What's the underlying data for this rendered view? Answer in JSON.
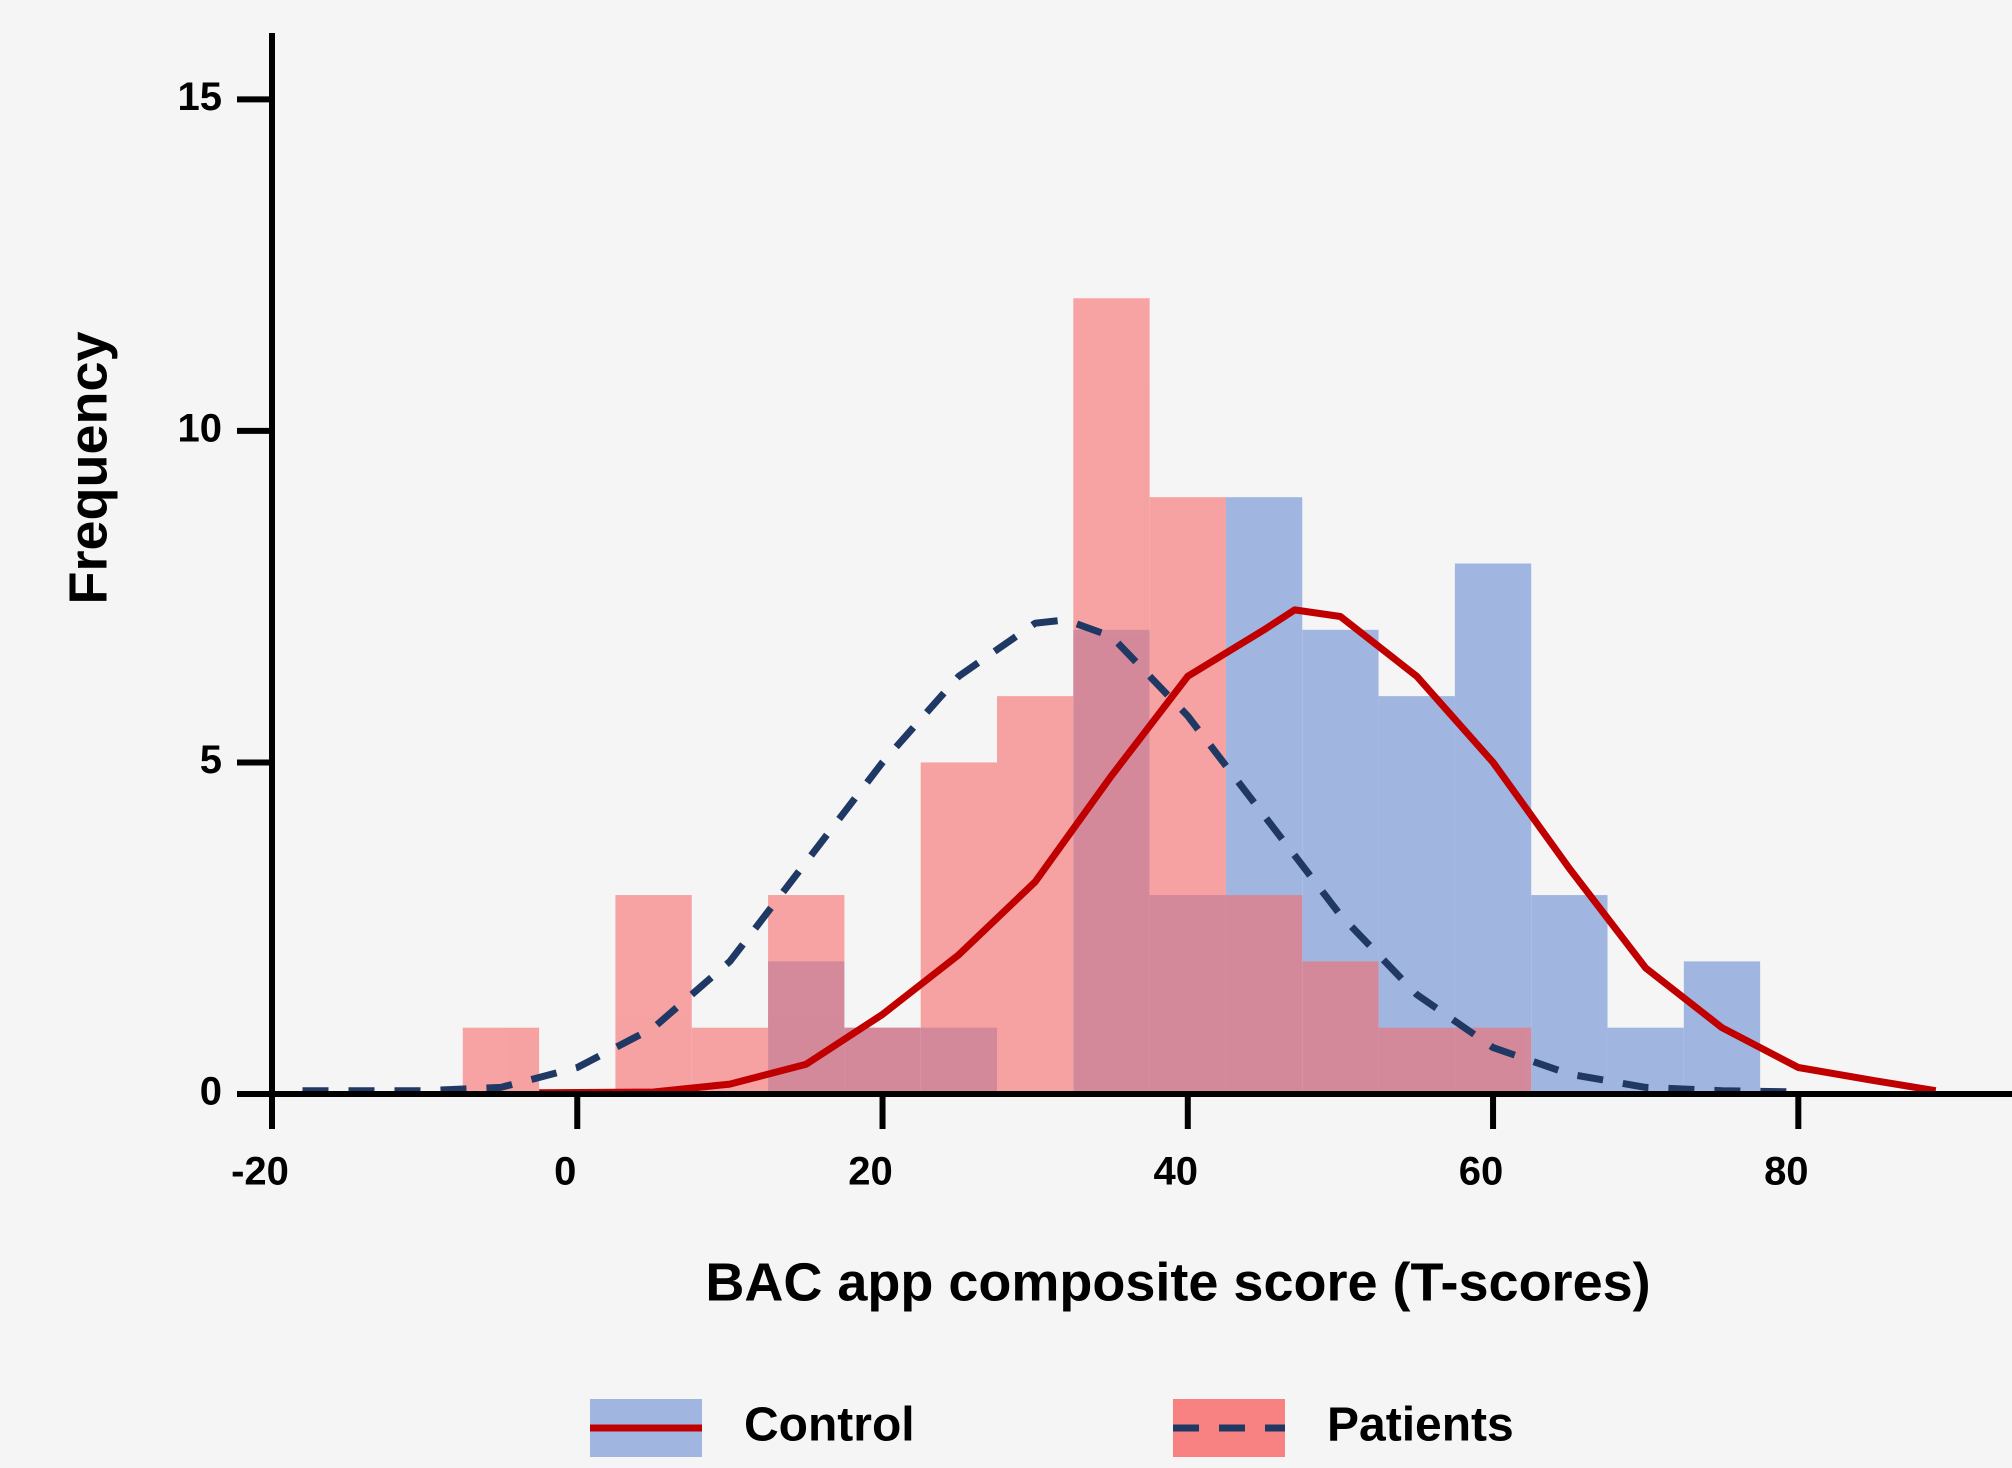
{
  "chart_data": {
    "type": "histogram",
    "xlabel": "BAC app composite score (T-scores)",
    "ylabel": "Frequency",
    "bins": [
      -7.5,
      -2.5,
      2.5,
      7.5,
      12.5,
      17.5,
      22.5,
      27.5,
      32.5,
      37.5,
      42.5,
      47.5,
      52.5,
      57.5,
      62.5,
      67.5,
      72.5,
      77.5
    ],
    "series": [
      {
        "name": "Control",
        "color": "#a0b6e0",
        "values": [
          0,
          0,
          0,
          0,
          2,
          1,
          1,
          0,
          7,
          3,
          9,
          7,
          6,
          8,
          3,
          1,
          2
        ],
        "line_color": "#c00000",
        "line_style": "solid",
        "density_x": [
          -2.5,
          5,
          10,
          15,
          20,
          25,
          30,
          35,
          40,
          45,
          47,
          50,
          55,
          60,
          65,
          70,
          75,
          80,
          85,
          89
        ],
        "density": [
          0.02,
          0.03,
          0.15,
          0.45,
          1.2,
          2.1,
          3.2,
          4.8,
          6.3,
          7.0,
          7.3,
          7.2,
          6.3,
          5.0,
          3.4,
          1.9,
          1.0,
          0.4,
          0.2,
          0.05
        ]
      },
      {
        "name": "Patients",
        "color": "#f86c6c",
        "values": [
          1,
          0,
          3,
          1,
          3,
          1,
          5,
          6,
          12,
          9,
          3,
          2,
          1,
          1,
          0,
          0,
          0
        ],
        "line_color": "#1f3864",
        "line_style": "dashed",
        "density_x": [
          -18,
          -10,
          -5,
          0,
          5,
          10,
          15,
          20,
          25,
          30,
          32,
          35,
          40,
          45,
          50,
          55,
          60,
          65,
          70,
          75,
          80
        ],
        "density": [
          0.05,
          0.05,
          0.1,
          0.4,
          1.0,
          2.0,
          3.5,
          5.0,
          6.3,
          7.1,
          7.15,
          6.9,
          5.7,
          4.2,
          2.7,
          1.5,
          0.7,
          0.3,
          0.1,
          0.05,
          0.03
        ]
      }
    ],
    "xlim": [
      -20,
      94
    ],
    "xticks": [
      -20,
      0,
      20,
      40,
      60,
      80
    ],
    "ylim": [
      0,
      16
    ],
    "yticks": [
      0,
      5,
      10,
      15
    ]
  }
}
